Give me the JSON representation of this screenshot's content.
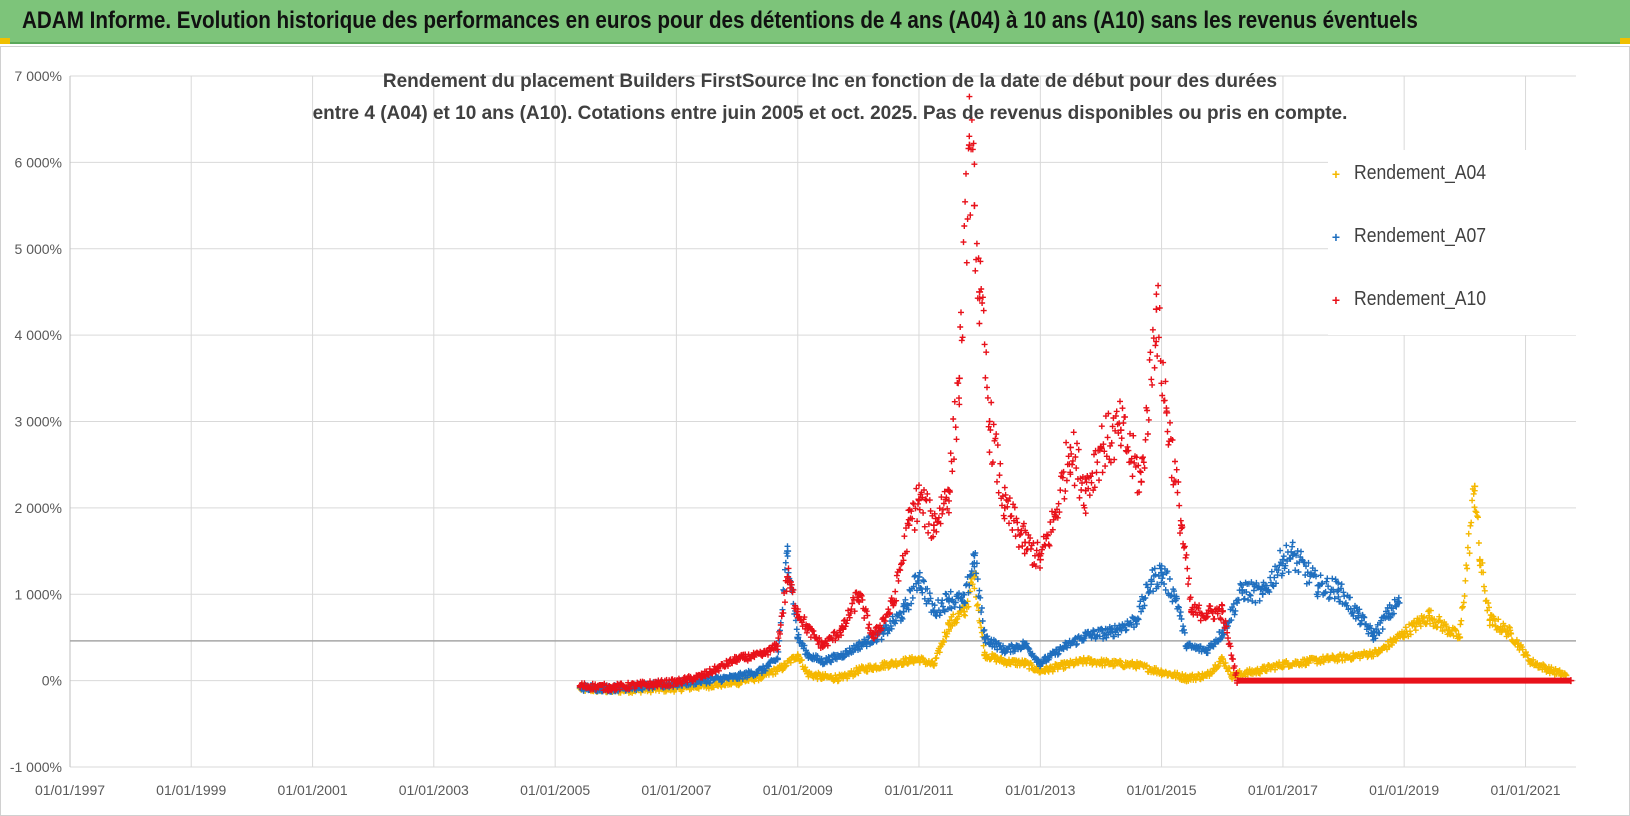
{
  "banner": {
    "title": "ADAM Informe. Evolution historique des performances en euros pour des détentions de 4 ans (A04) à 10 ans (A10) sans les revenus éventuels"
  },
  "chart_data": {
    "type": "scatter",
    "title_line1": "Rendement du placement Builders FirstSource Inc en fonction de la date de début pour des durées",
    "title_line2": "entre 4 (A04) et 10 ans (A10). Cotations entre juin 2005 et oct. 2025. Pas de revenus disponibles ou pris en compte.",
    "x_ticks": [
      "01/01/1997",
      "01/01/1999",
      "01/01/2001",
      "01/01/2003",
      "01/01/2005",
      "01/01/2007",
      "01/01/2009",
      "01/01/2011",
      "01/01/2013",
      "01/01/2015",
      "01/01/2017",
      "01/01/2019",
      "01/01/2021"
    ],
    "y_ticks": [
      "-1 000%",
      "0%",
      "1 000%",
      "2 000%",
      "3 000%",
      "4 000%",
      "5 000%",
      "6 000%",
      "7 000%"
    ],
    "xlim": [
      "1997-01-01",
      "2021-11-01"
    ],
    "ylim": [
      -1000,
      7000
    ],
    "grid": true,
    "legend_position": "top-right",
    "series": [
      {
        "name": "Rendement_A04",
        "color": "#f5b800",
        "points": [
          [
            "2005-06-01",
            -90
          ],
          [
            "2005-12-01",
            -110
          ],
          [
            "2006-06-01",
            -100
          ],
          [
            "2007-01-01",
            -90
          ],
          [
            "2007-06-01",
            -60
          ],
          [
            "2008-01-01",
            -20
          ],
          [
            "2008-06-01",
            50
          ],
          [
            "2008-10-01",
            150
          ],
          [
            "2009-01-01",
            300
          ],
          [
            "2009-03-01",
            80
          ],
          [
            "2009-06-01",
            40
          ],
          [
            "2009-10-01",
            30
          ],
          [
            "2010-01-01",
            120
          ],
          [
            "2010-06-01",
            180
          ],
          [
            "2010-10-01",
            220
          ],
          [
            "2011-01-01",
            250
          ],
          [
            "2011-04-01",
            180
          ],
          [
            "2011-07-01",
            650
          ],
          [
            "2011-10-01",
            800
          ],
          [
            "2011-12-01",
            1200
          ],
          [
            "2012-02-01",
            300
          ],
          [
            "2012-06-01",
            220
          ],
          [
            "2012-10-01",
            200
          ],
          [
            "2013-01-01",
            110
          ],
          [
            "2013-06-01",
            180
          ],
          [
            "2013-10-01",
            230
          ],
          [
            "2014-03-01",
            200
          ],
          [
            "2014-08-01",
            180
          ],
          [
            "2015-01-01",
            100
          ],
          [
            "2015-06-01",
            30
          ],
          [
            "2015-10-01",
            60
          ],
          [
            "2016-01-01",
            250
          ],
          [
            "2016-03-01",
            60
          ],
          [
            "2016-08-01",
            110
          ],
          [
            "2017-01-01",
            190
          ],
          [
            "2017-06-01",
            220
          ],
          [
            "2017-10-01",
            250
          ],
          [
            "2018-03-01",
            280
          ],
          [
            "2018-08-01",
            330
          ],
          [
            "2019-01-01",
            550
          ],
          [
            "2019-06-01",
            750
          ],
          [
            "2019-10-01",
            580
          ],
          [
            "2019-12-01",
            500
          ],
          [
            "2020-03-01",
            2250
          ],
          [
            "2020-04-01",
            1400
          ],
          [
            "2020-06-01",
            700
          ],
          [
            "2020-10-01",
            550
          ],
          [
            "2021-02-01",
            220
          ],
          [
            "2021-06-01",
            120
          ],
          [
            "2021-09-01",
            60
          ]
        ]
      },
      {
        "name": "Rendement_A07",
        "color": "#1f6fbf",
        "points": [
          [
            "2005-06-01",
            -80
          ],
          [
            "2005-12-01",
            -90
          ],
          [
            "2006-06-01",
            -70
          ],
          [
            "2007-01-01",
            -40
          ],
          [
            "2007-06-01",
            0
          ],
          [
            "2008-01-01",
            40
          ],
          [
            "2008-06-01",
            120
          ],
          [
            "2008-09-01",
            250
          ],
          [
            "2008-11-01",
            1500
          ],
          [
            "2009-01-01",
            500
          ],
          [
            "2009-03-01",
            300
          ],
          [
            "2009-06-01",
            220
          ],
          [
            "2009-10-01",
            300
          ],
          [
            "2010-01-01",
            400
          ],
          [
            "2010-06-01",
            550
          ],
          [
            "2010-10-01",
            800
          ],
          [
            "2011-01-01",
            1200
          ],
          [
            "2011-04-01",
            800
          ],
          [
            "2011-07-01",
            950
          ],
          [
            "2011-10-01",
            900
          ],
          [
            "2011-12-01",
            1450
          ],
          [
            "2012-02-01",
            500
          ],
          [
            "2012-06-01",
            350
          ],
          [
            "2012-10-01",
            420
          ],
          [
            "2013-01-01",
            200
          ],
          [
            "2013-06-01",
            400
          ],
          [
            "2013-10-01",
            520
          ],
          [
            "2014-03-01",
            560
          ],
          [
            "2014-08-01",
            700
          ],
          [
            "2014-11-01",
            1150
          ],
          [
            "2015-01-01",
            1250
          ],
          [
            "2015-04-01",
            950
          ],
          [
            "2015-06-01",
            400
          ],
          [
            "2015-10-01",
            350
          ],
          [
            "2016-01-01",
            550
          ],
          [
            "2016-05-01",
            1050
          ],
          [
            "2016-09-01",
            1000
          ],
          [
            "2017-01-01",
            1400
          ],
          [
            "2017-03-01",
            1450
          ],
          [
            "2017-08-01",
            1100
          ],
          [
            "2017-12-01",
            1050
          ],
          [
            "2018-04-01",
            750
          ],
          [
            "2018-07-01",
            520
          ],
          [
            "2018-10-01",
            780
          ],
          [
            "2018-12-01",
            900
          ]
        ]
      },
      {
        "name": "Rendement_A10",
        "color": "#e8111a",
        "points": [
          [
            "2005-06-01",
            -60
          ],
          [
            "2005-12-01",
            -80
          ],
          [
            "2006-06-01",
            -50
          ],
          [
            "2007-01-01",
            -20
          ],
          [
            "2007-06-01",
            50
          ],
          [
            "2008-01-01",
            250
          ],
          [
            "2008-06-01",
            300
          ],
          [
            "2008-09-01",
            400
          ],
          [
            "2008-11-01",
            1200
          ],
          [
            "2009-01-01",
            800
          ],
          [
            "2009-03-01",
            600
          ],
          [
            "2009-06-01",
            400
          ],
          [
            "2009-10-01",
            600
          ],
          [
            "2010-01-01",
            1000
          ],
          [
            "2010-04-01",
            500
          ],
          [
            "2010-08-01",
            900
          ],
          [
            "2010-11-01",
            1800
          ],
          [
            "2011-01-01",
            2100
          ],
          [
            "2011-04-01",
            1800
          ],
          [
            "2011-07-01",
            2200
          ],
          [
            "2011-09-01",
            3500
          ],
          [
            "2011-11-01",
            6200
          ],
          [
            "2011-12-01",
            5500
          ],
          [
            "2012-01-01",
            4500
          ],
          [
            "2012-03-01",
            3000
          ],
          [
            "2012-06-01",
            2000
          ],
          [
            "2012-10-01",
            1600
          ],
          [
            "2013-01-01",
            1400
          ],
          [
            "2013-04-01",
            1900
          ],
          [
            "2013-07-01",
            2700
          ],
          [
            "2013-10-01",
            2200
          ],
          [
            "2014-01-01",
            2700
          ],
          [
            "2014-05-01",
            2900
          ],
          [
            "2014-09-01",
            2300
          ],
          [
            "2014-12-01",
            4300
          ],
          [
            "2015-02-01",
            3100
          ],
          [
            "2015-05-01",
            1800
          ],
          [
            "2015-07-01",
            800
          ],
          [
            "2015-10-01",
            780
          ],
          [
            "2016-01-01",
            800
          ],
          [
            "2016-04-01",
            0
          ],
          [
            "2021-10-01",
            0
          ]
        ]
      }
    ]
  }
}
